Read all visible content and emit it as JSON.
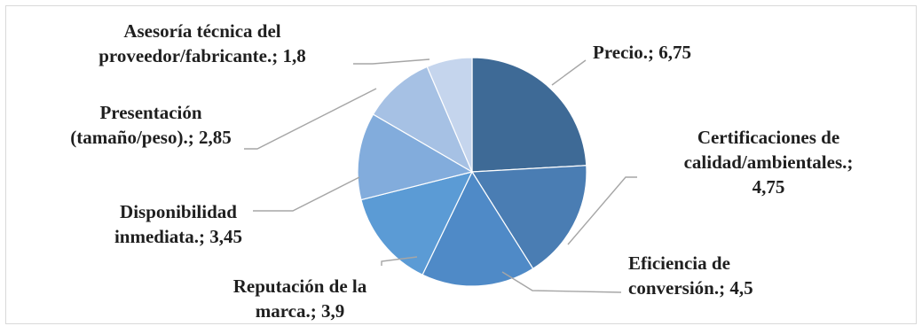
{
  "chart_data": {
    "type": "pie",
    "title": "",
    "start_angle_deg": 0,
    "direction": "clockwise",
    "legend": "none",
    "slices": [
      {
        "name": "Precio.",
        "value": 6.75,
        "label_lines": [
          "Precio.; 6,75"
        ],
        "color": "#3e6a96"
      },
      {
        "name": "Certificaciones de calidad/ambientales.",
        "value": 4.75,
        "label_lines": [
          "Certificaciones de",
          "calidad/ambientales.;",
          "4,75"
        ],
        "color": "#4a7db3"
      },
      {
        "name": "Eficiencia de conversión.",
        "value": 4.5,
        "label_lines": [
          "Eficiencia de",
          "conversión.; 4,5"
        ],
        "color": "#4f8ac7"
      },
      {
        "name": "Reputación de la marca.",
        "value": 3.9,
        "label_lines": [
          "Reputación de la",
          "marca.; 3,9"
        ],
        "color": "#5b9bd5"
      },
      {
        "name": "Disponibilidad inmediata.",
        "value": 3.45,
        "label_lines": [
          "Disponibilidad",
          "inmediata.; 3,45"
        ],
        "color": "#82acdc"
      },
      {
        "name": "Presentación (tamaño/peso).",
        "value": 2.85,
        "label_lines": [
          "Presentación",
          "(tamaño/peso).; 2,85"
        ],
        "color": "#a6c1e4"
      },
      {
        "name": "Asesoría técnica del proveedor/fabricante.",
        "value": 1.8,
        "label_lines": [
          "Asesoría técnica del",
          "proveedor/fabricante.; 1,8"
        ],
        "color": "#c5d5ed"
      }
    ]
  }
}
